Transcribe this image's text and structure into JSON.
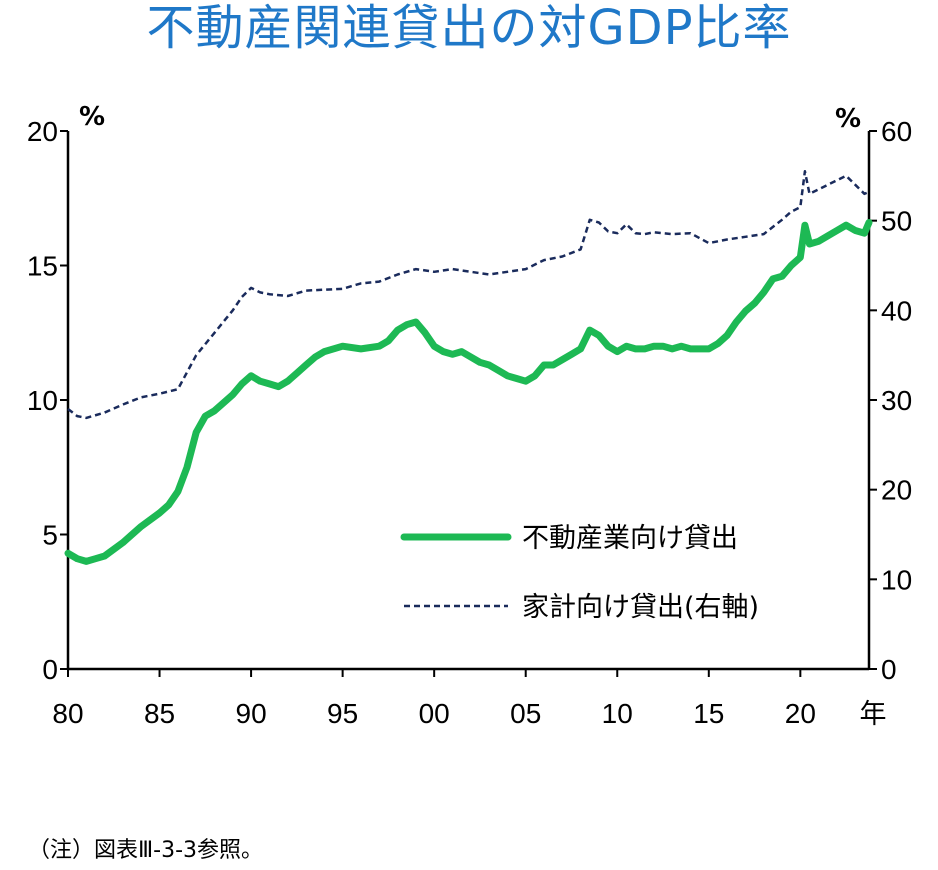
{
  "title": "不動産関連貸出の対GDP比率",
  "note": "（注）図表Ⅲ-3-3参照。",
  "chart_data": {
    "type": "line",
    "title": "不動産関連貸出の対GDP比率",
    "x_tick_labels": [
      "80",
      "85",
      "90",
      "95",
      "00",
      "05",
      "10",
      "15",
      "20"
    ],
    "x_unit": "年",
    "x_range": [
      1980,
      2023.75
    ],
    "y_left": {
      "unit": "%",
      "ticks": [
        0,
        5,
        10,
        15,
        20
      ],
      "range": [
        0,
        20
      ]
    },
    "y_right": {
      "unit": "%",
      "ticks": [
        0,
        10,
        20,
        30,
        40,
        50,
        60
      ],
      "range": [
        0,
        60
      ]
    },
    "legend_position": "lower-right",
    "grid": false,
    "series": [
      {
        "name": "不動産業向け貸出",
        "axis": "left",
        "color": "#1db954",
        "style": "solid",
        "x": [
          1980.0,
          1980.5,
          1981.0,
          1981.5,
          1982.0,
          1983.0,
          1984.0,
          1985.0,
          1985.5,
          1986.0,
          1986.5,
          1987.0,
          1987.5,
          1988.0,
          1988.5,
          1989.0,
          1989.5,
          1990.0,
          1990.5,
          1991.0,
          1991.5,
          1992.0,
          1992.5,
          1993.0,
          1993.5,
          1994.0,
          1995.0,
          1996.0,
          1997.0,
          1997.5,
          1998.0,
          1998.5,
          1999.0,
          1999.5,
          2000.0,
          2000.5,
          2001.0,
          2001.5,
          2002.0,
          2002.5,
          2003.0,
          2003.5,
          2004.0,
          2004.5,
          2005.0,
          2005.5,
          2006.0,
          2006.5,
          2007.0,
          2007.5,
          2008.0,
          2008.5,
          2009.0,
          2009.5,
          2010.0,
          2010.5,
          2011.0,
          2011.5,
          2012.0,
          2012.5,
          2013.0,
          2013.5,
          2014.0,
          2014.5,
          2015.0,
          2015.5,
          2016.0,
          2016.5,
          2017.0,
          2017.5,
          2018.0,
          2018.5,
          2019.0,
          2019.5,
          2020.0,
          2020.25,
          2020.5,
          2021.0,
          2021.5,
          2022.0,
          2022.5,
          2023.0,
          2023.5,
          2023.75
        ],
        "y": [
          4.3,
          4.1,
          4.0,
          4.1,
          4.2,
          4.7,
          5.3,
          5.8,
          6.1,
          6.6,
          7.5,
          8.8,
          9.4,
          9.6,
          9.9,
          10.2,
          10.6,
          10.9,
          10.7,
          10.6,
          10.5,
          10.7,
          11.0,
          11.3,
          11.6,
          11.8,
          12.0,
          11.9,
          12.0,
          12.2,
          12.6,
          12.8,
          12.9,
          12.5,
          12.0,
          11.8,
          11.7,
          11.8,
          11.6,
          11.4,
          11.3,
          11.1,
          10.9,
          10.8,
          10.7,
          10.9,
          11.3,
          11.3,
          11.5,
          11.7,
          11.9,
          12.6,
          12.4,
          12.0,
          11.8,
          12.0,
          11.9,
          11.9,
          12.0,
          12.0,
          11.9,
          12.0,
          11.9,
          11.9,
          11.9,
          12.1,
          12.4,
          12.9,
          13.3,
          13.6,
          14.0,
          14.5,
          14.6,
          15.0,
          15.3,
          16.5,
          15.8,
          15.9,
          16.1,
          16.3,
          16.5,
          16.3,
          16.2,
          16.6
        ]
      },
      {
        "name": "家計向け貸出(右軸)",
        "axis": "right",
        "color": "#1a2b5c",
        "style": "dashed",
        "x": [
          1980.0,
          1980.5,
          1981.0,
          1982.0,
          1983.0,
          1984.0,
          1985.0,
          1986.0,
          1987.0,
          1988.0,
          1989.0,
          1989.5,
          1990.0,
          1990.5,
          1991.0,
          1992.0,
          1993.0,
          1994.0,
          1995.0,
          1996.0,
          1997.0,
          1998.0,
          1999.0,
          2000.0,
          2001.0,
          2002.0,
          2003.0,
          2004.0,
          2005.0,
          2006.0,
          2007.0,
          2008.0,
          2008.5,
          2009.0,
          2009.5,
          2010.0,
          2010.5,
          2011.0,
          2011.5,
          2012.0,
          2013.0,
          2014.0,
          2015.0,
          2015.5,
          2016.0,
          2017.0,
          2018.0,
          2019.0,
          2019.5,
          2020.0,
          2020.25,
          2020.5,
          2021.0,
          2021.5,
          2022.0,
          2022.5,
          2023.0,
          2023.5,
          2023.75
        ],
        "y": [
          29.0,
          28.2,
          28.0,
          28.6,
          29.5,
          30.3,
          30.7,
          31.2,
          35.0,
          37.5,
          40.0,
          41.5,
          42.5,
          42.0,
          41.8,
          41.6,
          42.2,
          42.3,
          42.4,
          43.0,
          43.2,
          44.0,
          44.6,
          44.3,
          44.6,
          44.3,
          44.0,
          44.3,
          44.6,
          45.6,
          46.0,
          46.8,
          50.1,
          49.8,
          48.8,
          48.6,
          49.6,
          48.6,
          48.5,
          48.7,
          48.5,
          48.6,
          47.5,
          47.7,
          47.9,
          48.2,
          48.5,
          50.1,
          51.0,
          51.5,
          55.5,
          53.0,
          53.5,
          54.0,
          54.5,
          55.0,
          54.0,
          53.0,
          53.2
        ]
      }
    ]
  }
}
